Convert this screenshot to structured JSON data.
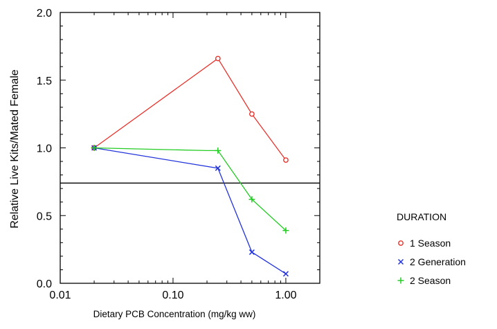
{
  "chart_data": {
    "type": "line",
    "title": "",
    "xlabel": "Dietary PCB Concentration (mg/kg ww)",
    "ylabel": "Relative Live Kits/Mated Female",
    "xscale": "log",
    "xlim": [
      0.01,
      2.0
    ],
    "ylim": [
      0.0,
      2.0
    ],
    "x_ticks": [
      0.01,
      0.1,
      1.0
    ],
    "x_tick_labels": [
      "0.01",
      "0.10",
      "1.00"
    ],
    "y_ticks": [
      0.0,
      0.5,
      1.0,
      1.5,
      2.0
    ],
    "y_tick_labels": [
      "0.0",
      "0.5",
      "1.0",
      "1.5",
      "2.0"
    ],
    "grid": false,
    "reference_line": {
      "y": 0.74,
      "color": "#000000"
    },
    "legend": {
      "title": "DURATION",
      "placement": "right"
    },
    "series": [
      {
        "name": "1 Season",
        "color": "#e8322c",
        "marker": "circle",
        "x": [
          0.02,
          0.25,
          0.5,
          1.0
        ],
        "y": [
          1.0,
          1.66,
          1.25,
          0.91
        ]
      },
      {
        "name": "2 Generation",
        "color": "#2233dd",
        "marker": "x",
        "x": [
          0.02,
          0.25,
          0.5,
          1.0
        ],
        "y": [
          1.0,
          0.85,
          0.23,
          0.07
        ]
      },
      {
        "name": "2 Season",
        "color": "#22cc22",
        "marker": "plus",
        "x": [
          0.02,
          0.2,
          0.25,
          0.5,
          1.0
        ],
        "y": [
          1.0,
          0.98,
          0.98,
          0.62,
          0.39
        ],
        "marker_mask": [
          true,
          false,
          true,
          true,
          true
        ]
      }
    ]
  }
}
